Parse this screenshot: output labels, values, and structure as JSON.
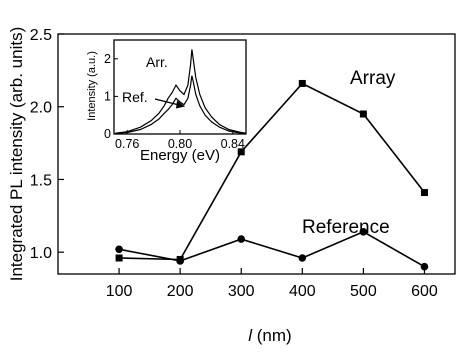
{
  "chart_data": [
    {
      "type": "line",
      "title": "",
      "ylabel": "Integrated PL intensity (arb. units)",
      "xlabel_var": "l",
      "xlabel_unit": " (nm)",
      "xlim": [
        0,
        650
      ],
      "ylim": [
        0.85,
        2.5
      ],
      "xticks": [
        100,
        200,
        300,
        400,
        500,
        600
      ],
      "xtick_labels": [
        "100",
        "200",
        "300",
        "400",
        "500",
        "600"
      ],
      "yticks": [
        1.0,
        1.5,
        2.0,
        2.5
      ],
      "ytick_labels": [
        "1.0",
        "1.5",
        "2.0",
        "2.5"
      ],
      "grid": false,
      "legend": "none",
      "series": [
        {
          "name": "Array",
          "marker": "square",
          "x": [
            100,
            200,
            300,
            400,
            500,
            600
          ],
          "y": [
            0.96,
            0.95,
            1.69,
            2.16,
            1.95,
            1.41
          ]
        },
        {
          "name": "Reference",
          "marker": "circle",
          "x": [
            100,
            200,
            300,
            400,
            500,
            600
          ],
          "y": [
            1.02,
            0.94,
            1.09,
            0.96,
            1.14,
            0.9
          ]
        }
      ]
    },
    {
      "type": "line",
      "title": "",
      "ylabel": "Intensity (a.u.)",
      "xlabel": "Energy (eV)",
      "xlim": [
        0.75,
        0.85
      ],
      "ylim": [
        0,
        2.5
      ],
      "xticks": [
        0.76,
        0.8,
        0.84
      ],
      "xtick_labels": [
        "0.76",
        "0.80",
        "0.84"
      ],
      "yticks": [
        0,
        1,
        2
      ],
      "ytick_labels": [
        "0",
        "1",
        "2"
      ],
      "grid": false,
      "legend": "none",
      "series": [
        {
          "name": "Arr.",
          "x": [
            0.751,
            0.76,
            0.77,
            0.778,
            0.784,
            0.788,
            0.791,
            0.794,
            0.797,
            0.8,
            0.803,
            0.806,
            0.808,
            0.809,
            0.81,
            0.812,
            0.815,
            0.819,
            0.824,
            0.83,
            0.837,
            0.845,
            0.85
          ],
          "y": [
            0.02,
            0.06,
            0.18,
            0.35,
            0.55,
            0.75,
            0.95,
            1.1,
            1.3,
            1.15,
            1.05,
            1.3,
            1.85,
            2.25,
            2.0,
            1.5,
            1.05,
            0.7,
            0.45,
            0.25,
            0.12,
            0.05,
            0.02
          ]
        },
        {
          "name": "Ref.",
          "x": [
            0.751,
            0.76,
            0.77,
            0.778,
            0.784,
            0.788,
            0.791,
            0.794,
            0.797,
            0.8,
            0.803,
            0.806,
            0.808,
            0.809,
            0.81,
            0.812,
            0.815,
            0.819,
            0.824,
            0.83,
            0.837,
            0.845,
            0.85
          ],
          "y": [
            0.02,
            0.04,
            0.12,
            0.25,
            0.4,
            0.55,
            0.65,
            0.78,
            0.95,
            0.85,
            0.78,
            0.95,
            1.3,
            1.55,
            1.4,
            1.05,
            0.75,
            0.5,
            0.32,
            0.18,
            0.08,
            0.03,
            0.01
          ]
        }
      ],
      "annotations": [
        "Arr.",
        "Ref."
      ]
    }
  ]
}
